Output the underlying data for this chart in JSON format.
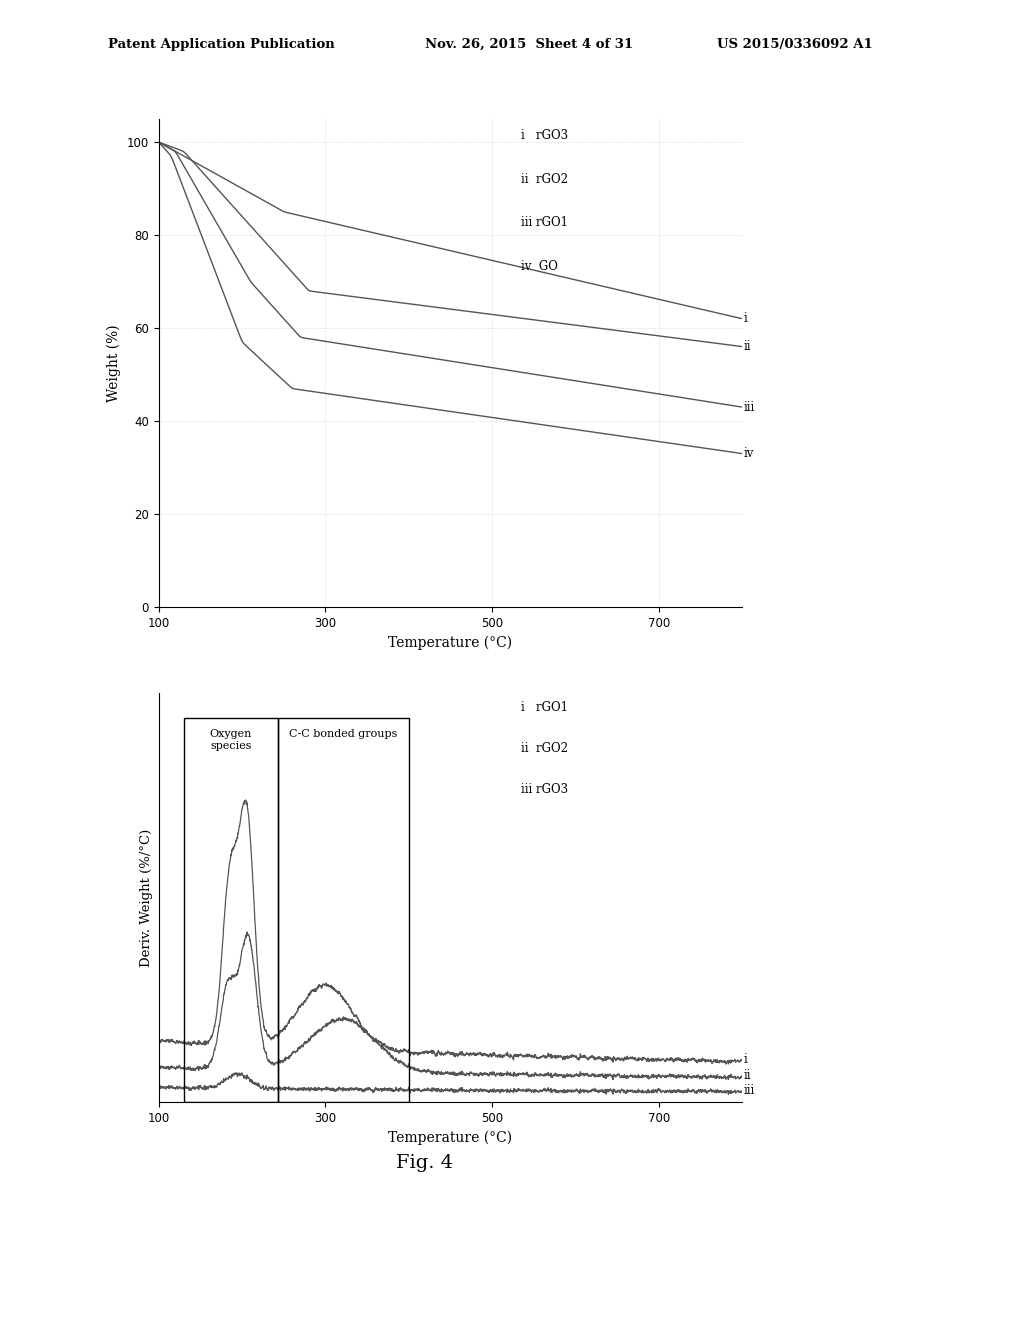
{
  "header_left": "Patent Application Publication",
  "header_mid": "Nov. 26, 2015  Sheet 4 of 31",
  "header_right": "US 2015/0336092 A1",
  "fig_label": "Fig. 4",
  "top_plot": {
    "xlabel": "Temperature (°C)",
    "ylabel": "Weight (%)",
    "xlim": [
      100,
      800
    ],
    "ylim": [
      0,
      105
    ],
    "xticks": [
      100,
      300,
      500,
      700
    ],
    "yticks": [
      0,
      20,
      40,
      60,
      80,
      100
    ],
    "legend_lines": [
      "i   rGO3",
      "ii  rGO2",
      "iii rGO1",
      "iv  GO"
    ],
    "curve_labels": [
      "i",
      "ii",
      "iii",
      "iv"
    ]
  },
  "bottom_plot": {
    "xlabel": "Temperature (°C)",
    "ylabel": "Deriv. Weight (%/°C)",
    "xlim": [
      100,
      800
    ],
    "xticks": [
      100,
      300,
      500,
      700
    ],
    "rect_left_x1": 130,
    "rect_left_x2": 243,
    "rect_right_x1": 243,
    "rect_right_x2": 400,
    "rect1_label": "Oxygen\nspecies",
    "rect2_label": "C-C bonded groups",
    "legend_lines": [
      "i   rGO1",
      "ii  rGO2",
      "iii rGO3"
    ],
    "curve_labels": [
      "i",
      "ii",
      "iii"
    ]
  },
  "bg_color": "#ffffff",
  "line_color": "#555555",
  "dot_line_color": "#888888"
}
